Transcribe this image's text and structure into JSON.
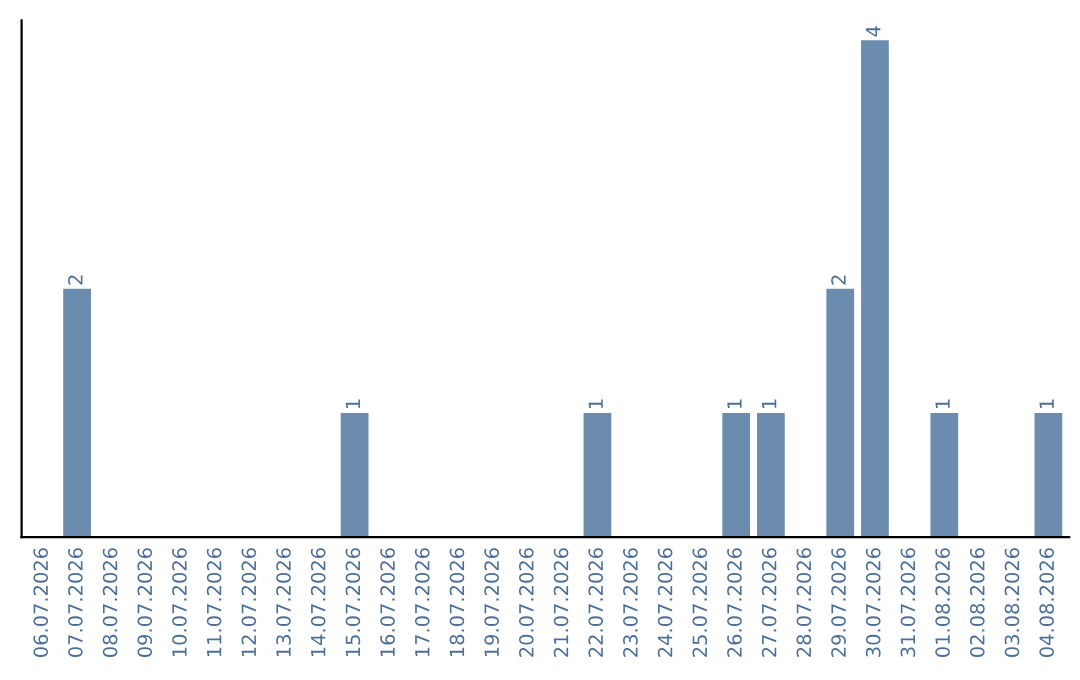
{
  "chart_data": {
    "type": "bar",
    "categories": [
      "06.07.2026",
      "07.07.2026",
      "08.07.2026",
      "09.07.2026",
      "10.07.2026",
      "11.07.2026",
      "12.07.2026",
      "13.07.2026",
      "14.07.2026",
      "15.07.2026",
      "16.07.2026",
      "17.07.2026",
      "18.07.2026",
      "19.07.2026",
      "20.07.2026",
      "21.07.2026",
      "22.07.2026",
      "23.07.2026",
      "24.07.2026",
      "25.07.2026",
      "26.07.2026",
      "27.07.2026",
      "28.07.2026",
      "29.07.2026",
      "30.07.2026",
      "31.07.2026",
      "01.08.2026",
      "02.08.2026",
      "03.08.2026",
      "04.08.2026"
    ],
    "values": [
      0,
      2,
      0,
      0,
      0,
      0,
      0,
      0,
      0,
      1,
      0,
      0,
      0,
      0,
      0,
      0,
      1,
      0,
      0,
      0,
      1,
      1,
      0,
      2,
      4,
      0,
      1,
      0,
      0,
      1
    ],
    "color": "#6b8cae",
    "value_labels": [
      null,
      "2",
      null,
      null,
      null,
      null,
      null,
      null,
      null,
      "1",
      null,
      null,
      null,
      null,
      null,
      null,
      "1",
      null,
      null,
      null,
      "1",
      "1",
      null,
      "2",
      "4",
      null,
      "1",
      null,
      null,
      "1"
    ],
    "tick_labels": "x",
    "grid": false
  }
}
